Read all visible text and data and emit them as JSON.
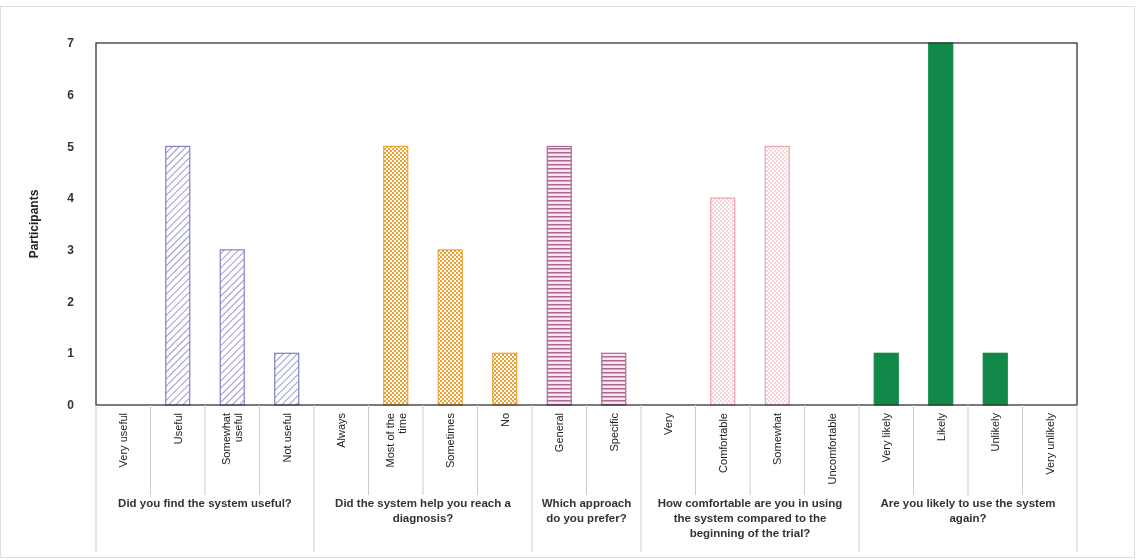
{
  "chart_data": {
    "type": "bar",
    "ylabel": "Participants",
    "categories": [
      "Very useful",
      "Useful",
      "Somewhat useful",
      "Not useful",
      "Always",
      "Most of the time",
      "Sometimes",
      "No",
      "General",
      "Specific",
      "Very",
      "Comfortable",
      "Somewhat",
      "Uncomfortable",
      "Very likely",
      "Likely",
      "Unlikely",
      "Very unlikely"
    ],
    "values": [
      0,
      5,
      3,
      1,
      0,
      5,
      3,
      1,
      5,
      1,
      0,
      4,
      5,
      0,
      1,
      7,
      1,
      0
    ],
    "colors": [
      "#8080c8",
      "#8080c8",
      "#8080c8",
      "#8080c8",
      "#f0a030",
      "#f0a030",
      "#f0a030",
      "#f0a030",
      "#b06890",
      "#b06890",
      "#f0a0a8",
      "#f0a0a8",
      "#f0a0a8",
      "#f0a0a8",
      "#108848",
      "#108848",
      "#108848",
      "#108848"
    ],
    "ylim": [
      0,
      7
    ],
    "yticks": [
      0,
      1,
      2,
      3,
      4,
      5,
      6,
      7
    ],
    "grid": false,
    "annotations": [
      "Did you find the system useful?",
      "Did the system help you reach a diagnosis?",
      "Which approach do you prefer?",
      "How comfortable are you in using the system compared to the beginning of the trial?",
      "Are you likely to use the system again?"
    ]
  }
}
